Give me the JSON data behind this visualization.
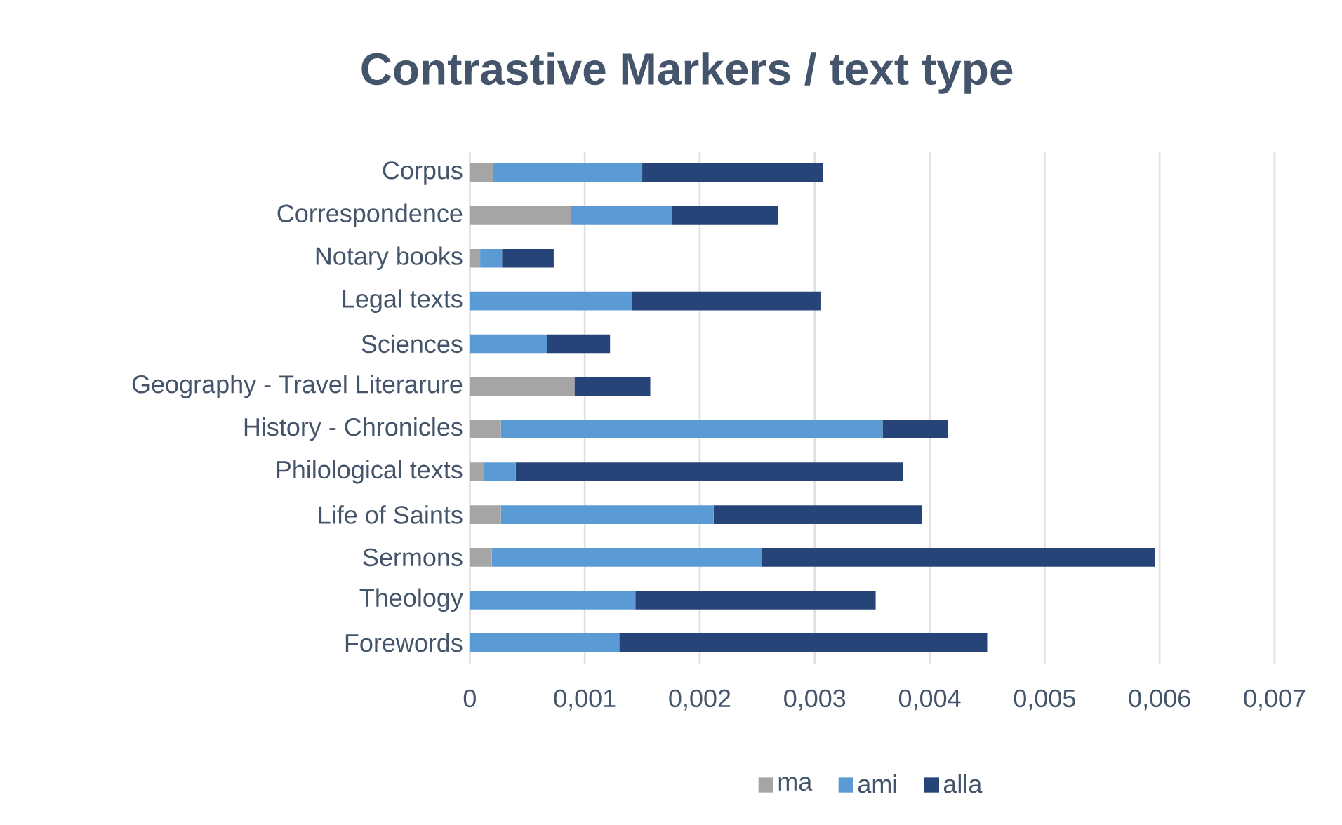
{
  "chart_data": {
    "type": "bar",
    "orientation": "horizontal",
    "stacked": true,
    "title": "Contrastive Markers / text type",
    "categories": [
      "Corpus",
      "Correspondence",
      "Notary books",
      "Legal texts",
      "Sciences",
      "Geography - Travel Literarure",
      "History - Chronicles",
      "Philological texts",
      "Life of Saints",
      "Sermons",
      "Theology",
      "Forewords"
    ],
    "series": [
      {
        "name": "ma",
        "color": "#a5a5a5",
        "values": [
          0.0002,
          0.00088,
          9e-05,
          0,
          0,
          0.00091,
          0.00027,
          0.00012,
          0.00027,
          0.00019,
          0,
          0
        ]
      },
      {
        "name": "ami",
        "color": "#5b9bd5",
        "values": [
          0.0013,
          0.00088,
          0.00019,
          0.00141,
          0.00067,
          0,
          0.00332,
          0.00028,
          0.00185,
          0.00235,
          0.00144,
          0.0013
        ]
      },
      {
        "name": "alla",
        "color": "#264478",
        "values": [
          0.00157,
          0.00092,
          0.00045,
          0.00164,
          0.00055,
          0.00066,
          0.00057,
          0.00337,
          0.00181,
          0.00342,
          0.00209,
          0.0032
        ]
      }
    ],
    "xlim": [
      0,
      0.007
    ],
    "xticks": [
      0,
      {
        "value": 0.001,
        "label": "0,001"
      },
      {
        "value": 0.002,
        "label": "0,002"
      },
      {
        "value": 0.003,
        "label": "0,003"
      },
      {
        "value": 0.004,
        "label": "0,004"
      },
      {
        "value": 0.005,
        "label": "0,005"
      },
      {
        "value": 0.006,
        "label": "0,006"
      },
      {
        "value": 0.007,
        "label": "0,007"
      }
    ],
    "grid": "x",
    "legend": "bottom"
  }
}
